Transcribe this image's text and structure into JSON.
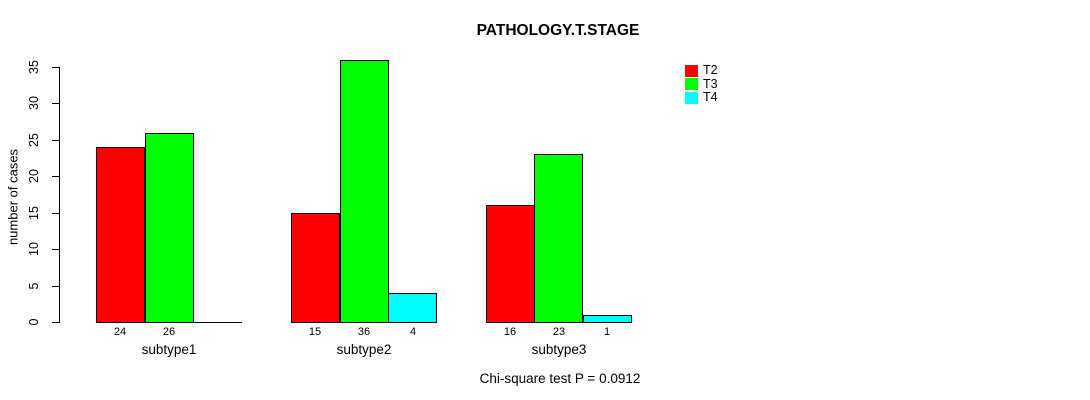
{
  "chart_data": {
    "type": "bar",
    "title": "PATHOLOGY.T.STAGE",
    "ylabel": "number of cases",
    "xlabel": "",
    "categories": [
      "subtype1",
      "subtype2",
      "subtype3"
    ],
    "series": [
      {
        "name": "T2",
        "color": "#ff0000",
        "values": [
          24,
          15,
          16
        ]
      },
      {
        "name": "T3",
        "color": "#00ff00",
        "values": [
          26,
          36,
          23
        ]
      },
      {
        "name": "T4",
        "color": "#00ffff",
        "values": [
          0,
          4,
          1
        ]
      }
    ],
    "yticks": [
      0,
      5,
      10,
      15,
      20,
      25,
      30,
      35
    ],
    "ylim": [
      0,
      35
    ],
    "grid": false,
    "bar_border_color": "#000000",
    "value_labels_shown": true,
    "legend_position": "top-right",
    "annotation": "Chi-square test P = 0.0912"
  }
}
